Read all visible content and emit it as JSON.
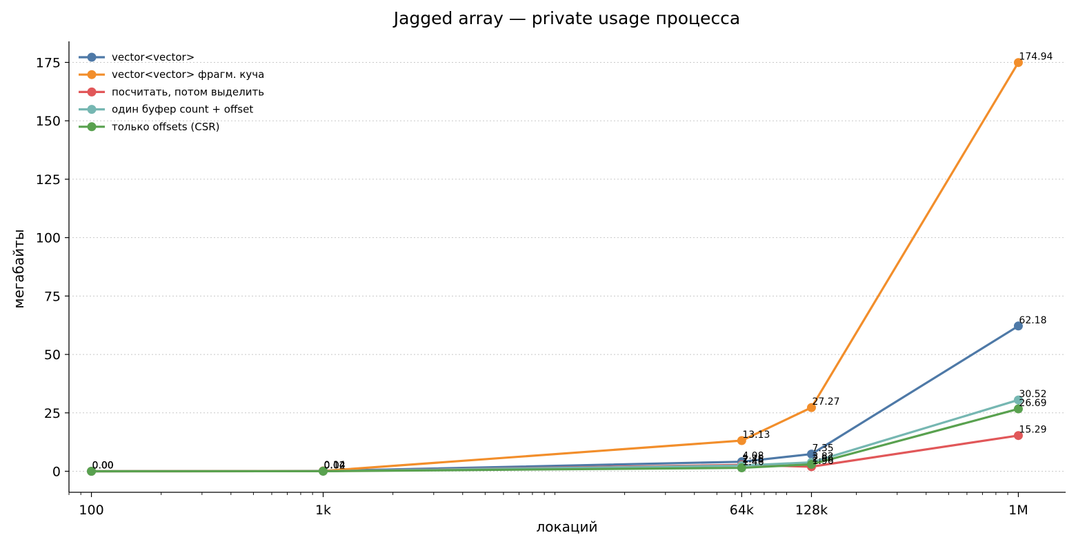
{
  "chart_data": {
    "type": "line",
    "title": "Jagged array — private usage процесса",
    "xlabel": "локаций",
    "ylabel": "мегабайты",
    "x_scale": "log",
    "x": [
      100,
      1000,
      64000,
      128000,
      1000000
    ],
    "x_tick_labels": [
      "100",
      "1k",
      "64k",
      "128k",
      "1M"
    ],
    "xlim": [
      80,
      1600000
    ],
    "ylim": [
      -9,
      184
    ],
    "y_ticks": [
      0,
      25,
      50,
      75,
      100,
      125,
      150,
      175
    ],
    "grid": "y-dotted",
    "legend_position": "top-left",
    "series": [
      {
        "name": "vector<vector>",
        "color": "#4e79a7",
        "values": [
          0.0,
          0.14,
          4.08,
          7.35,
          62.18
        ],
        "labels": [
          "0.00",
          "0.14",
          "4.08",
          "7.35",
          "62.18"
        ]
      },
      {
        "name": "vector<vector> фрагм. куча",
        "color": "#f28e2b",
        "values": [
          0.0,
          0.14,
          13.13,
          27.27,
          174.94
        ],
        "labels": [
          "0.00",
          "0.14",
          "13.13",
          "27.27",
          "174.94"
        ]
      },
      {
        "name": "посчитать, потом выделить",
        "color": "#e15759",
        "values": [
          0.0,
          0.02,
          2.75,
          1.96,
          15.29
        ],
        "labels": [
          "0.00",
          "0.02",
          "2.75",
          "1.96",
          "15.29"
        ]
      },
      {
        "name": "один буфер count + offset",
        "color": "#76b7b2",
        "values": [
          0.0,
          0.04,
          2.46,
          3.82,
          30.52
        ],
        "labels": [
          "0.00",
          "0.04",
          "2.46",
          "3.82",
          "30.52"
        ]
      },
      {
        "name": "только offsets (CSR)",
        "color": "#59a14f",
        "values": [
          0.0,
          0.02,
          1.46,
          2.96,
          26.69
        ],
        "labels": [
          "0.00",
          "0.02",
          "1.46",
          "2.96",
          "26.69"
        ]
      }
    ]
  }
}
